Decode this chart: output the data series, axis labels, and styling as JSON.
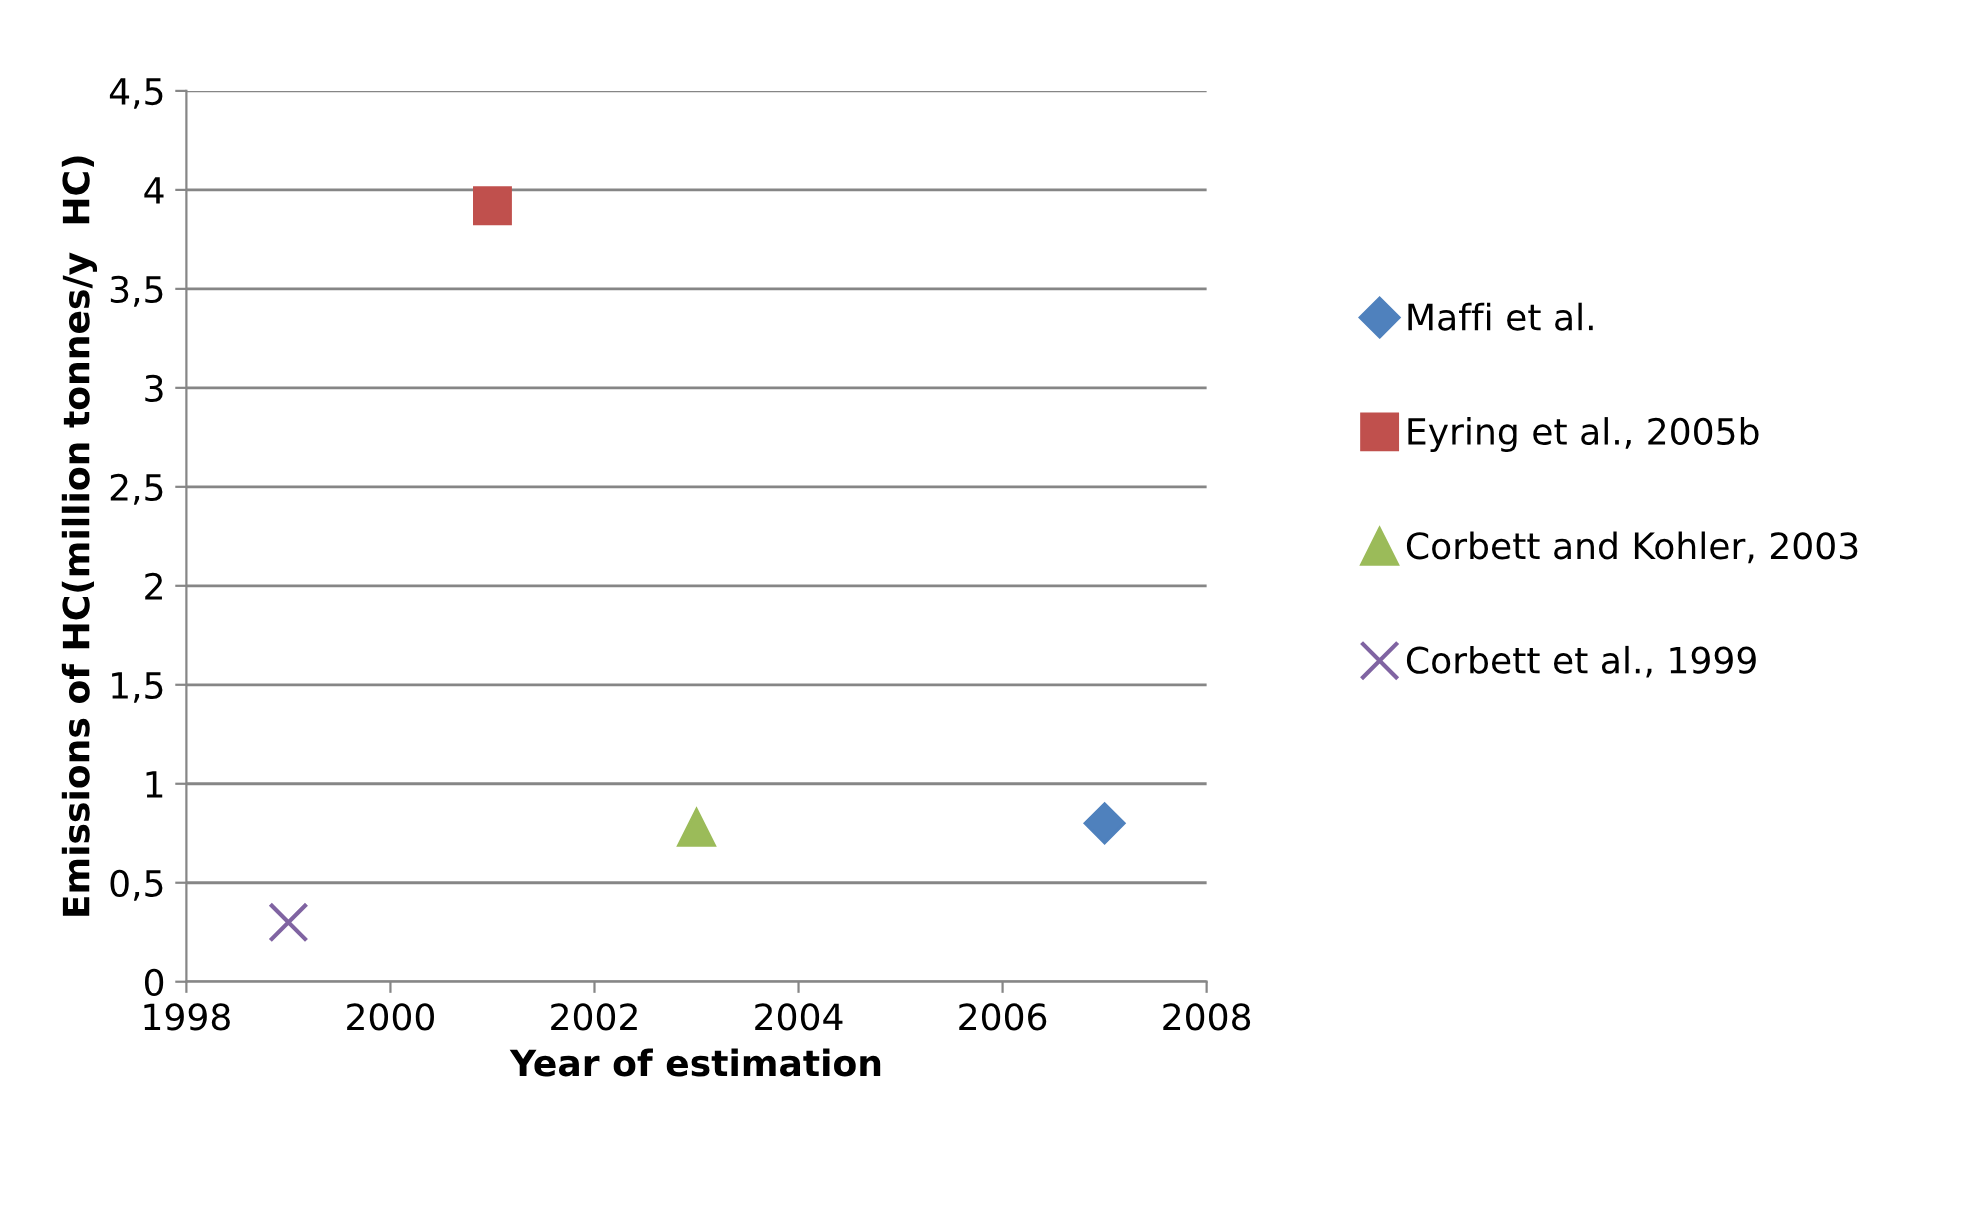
{
  "chart_data": {
    "type": "scatter",
    "xlabel": "Year of estimation",
    "ylabel": "Emissions of HC(million tonnes/y  HC)",
    "series": [
      {
        "name": "Maffi et al.",
        "color": "#4f81bd",
        "marker": "diamond",
        "x": [
          2007
        ],
        "values": [
          0.8
        ]
      },
      {
        "name": "Eyring et al., 2005b",
        "color": "#c0504d",
        "marker": "square",
        "x": [
          2001
        ],
        "values": [
          3.92
        ]
      },
      {
        "name": "Corbett and Kohler, 2003",
        "color": "#9bbb59",
        "marker": "triangle",
        "x": [
          2003
        ],
        "values": [
          0.78
        ]
      },
      {
        "name": "Corbett et al., 1999",
        "color": "#8064a2",
        "marker": "cross",
        "x": [
          1999
        ],
        "values": [
          0.3
        ]
      }
    ],
    "xlim": [
      1998,
      2008
    ],
    "xticks": [
      1998,
      2000,
      2002,
      2004,
      2006,
      2008
    ],
    "ylim": [
      0,
      4.5
    ],
    "yticks": [
      0,
      {
        "value": 0.5,
        "label": "0,5"
      },
      1,
      {
        "value": 1.5,
        "label": "1,5"
      },
      2,
      {
        "value": 2.5,
        "label": "2,5"
      },
      3,
      {
        "value": 3.5,
        "label": "3,5"
      },
      4,
      {
        "value": 4.5,
        "label": "4,5"
      }
    ],
    "grid": "y",
    "legend": "right"
  }
}
